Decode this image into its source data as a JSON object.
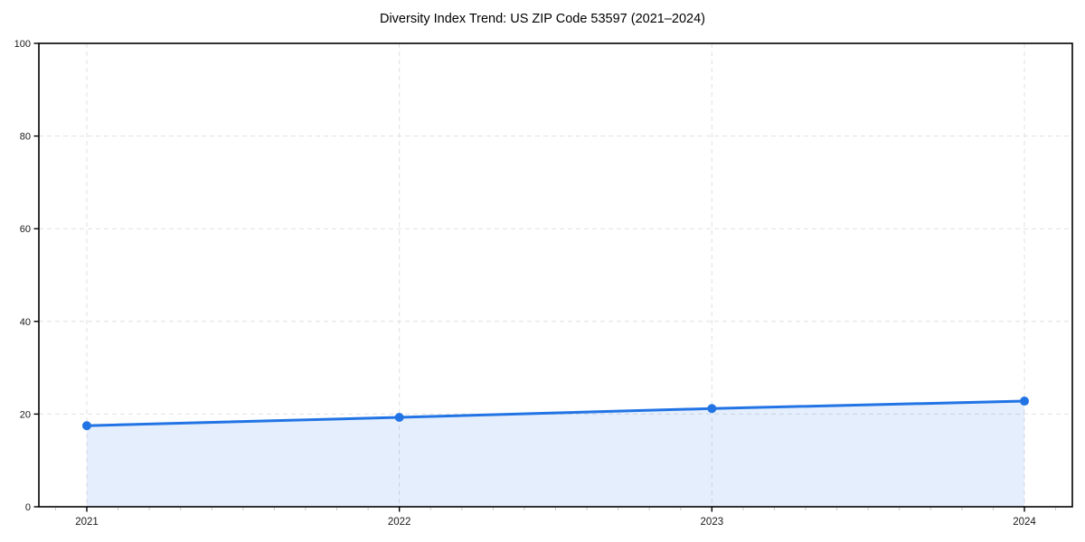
{
  "chart_data": {
    "type": "line",
    "title": "Diversity Index Trend: US ZIP Code 53597 (2021–2024)",
    "x": [
      "2021",
      "2022",
      "2023",
      "2024"
    ],
    "values": [
      17.5,
      19.3,
      21.2,
      22.8
    ],
    "xlabel": "",
    "ylabel": "",
    "ylim": [
      0,
      100
    ],
    "yticks": [
      0,
      20,
      40,
      60,
      80,
      100
    ],
    "legend_position": "none",
    "grid": {
      "style": "dashed",
      "horizontal": true,
      "vertical": true
    },
    "area_fill": true,
    "colors": {
      "line": "#2274e5",
      "marker": "#2274e5",
      "area": "rgba(34,116,229,0.12)",
      "grid": "#e0e0e0",
      "axis": "#000000",
      "tick_label": "#1a1a1a",
      "minor_tick": "#c9c9c9",
      "background": "#ffffff"
    }
  }
}
